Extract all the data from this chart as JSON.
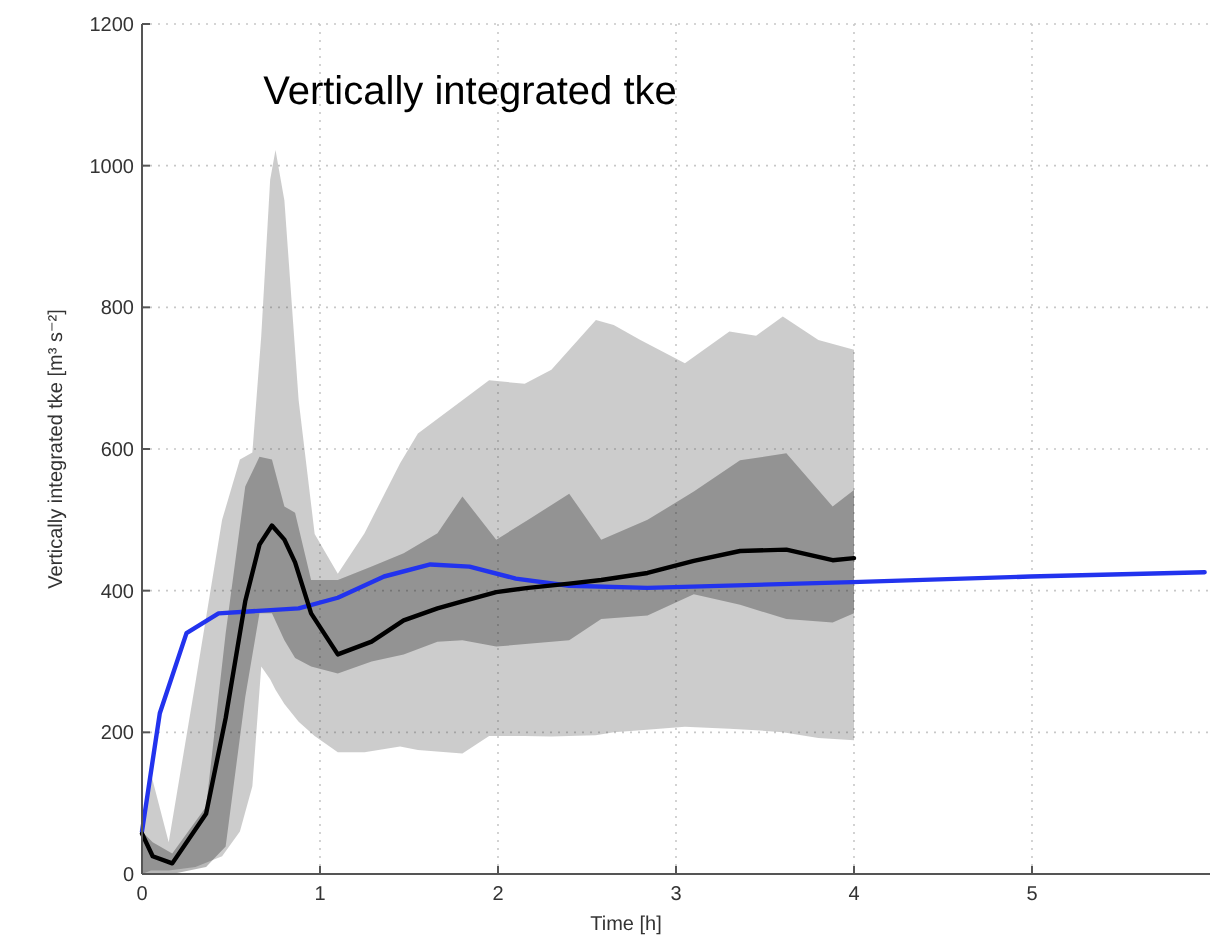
{
  "chart_data": {
    "type": "line",
    "title": "Vertically integrated tke",
    "xlabel": "Time [h]",
    "ylabel": "Vertically integrated tke [m³ s⁻²]",
    "xlim": [
      0,
      6
    ],
    "xticks": [
      0,
      1,
      2,
      3,
      4,
      5
    ],
    "ylim": [
      0,
      1200
    ],
    "yticks": [
      0,
      200,
      400,
      600,
      800,
      1000,
      1200
    ],
    "grid": true,
    "series": [
      {
        "color": "#494949",
        "x": [
          0,
          0.05,
          0.15,
          0.3,
          0.45,
          0.55,
          0.62,
          0.67,
          0.72,
          0.75,
          0.8,
          0.88,
          0.97,
          1.1,
          1.25,
          1.45,
          1.55,
          1.8,
          1.95,
          2.15,
          2.3,
          2.55,
          2.65,
          2.8,
          3.05,
          3.3,
          3.45,
          3.6,
          3.8,
          4.0
        ],
        "values": [
          null,
          null,
          null,
          null,
          null,
          null,
          null,
          null,
          null,
          null,
          null,
          null,
          null,
          null,
          null,
          null,
          null,
          null,
          null,
          null,
          null,
          null,
          null,
          null,
          null,
          null,
          null,
          null,
          null,
          null
        ],
        "upper": [
          60,
          142,
          45,
          270,
          500,
          585,
          595,
          760,
          980,
          1022,
          951,
          669,
          480,
          424,
          481,
          580,
          622,
          669,
          697,
          692,
          712,
          782,
          775,
          754,
          721,
          766,
          760,
          787,
          754,
          740
        ],
        "lower": [
          0,
          5,
          5,
          10,
          25,
          60,
          124,
          293,
          275,
          260,
          240,
          215,
          195,
          172,
          172,
          180,
          175,
          170,
          195,
          195,
          194,
          196,
          200,
          203,
          208,
          205,
          203,
          200,
          192,
          189
        ]
      },
      {
        "color": "#2233ee",
        "x": [
          0,
          0.1,
          0.25,
          0.43,
          0.62,
          0.88,
          1.1,
          1.36,
          1.62,
          1.84,
          2.1,
          2.4,
          2.84,
          3.99,
          4.99,
          5.97
        ],
        "values": [
          60,
          227,
          340,
          368,
          371,
          375,
          390,
          420,
          437,
          434,
          417,
          407,
          404,
          412,
          420,
          426
        ]
      },
      {
        "color": "#000000",
        "x": [
          0,
          0.06,
          0.17,
          0.36,
          0.47,
          0.58,
          0.66,
          0.73,
          0.8,
          0.86,
          0.95,
          1.1,
          1.29,
          1.47,
          1.66,
          1.8,
          1.99,
          2.17,
          2.4,
          2.58,
          2.84,
          3.1,
          3.36,
          3.62,
          3.88,
          4.0
        ],
        "values": [
          57,
          25,
          15,
          85,
          220,
          385,
          465,
          492,
          472,
          440,
          368,
          310,
          328,
          358,
          375,
          385,
          398,
          404,
          410,
          415,
          425,
          442,
          456,
          458,
          443,
          446
        ],
        "upper": [
          60,
          45,
          29,
          95,
          340,
          547,
          589,
          585,
          519,
          510,
          415,
          415,
          434,
          453,
          481,
          533,
          472,
          500,
          537,
          472,
          500,
          540,
          584,
          594,
          519,
          542
        ],
        "lower": [
          0,
          0,
          0,
          10,
          39,
          250,
          368,
          368,
          330,
          305,
          293,
          283,
          300,
          310,
          328,
          330,
          321,
          325,
          330,
          360,
          365,
          395,
          380,
          360,
          355,
          368
        ]
      }
    ]
  }
}
